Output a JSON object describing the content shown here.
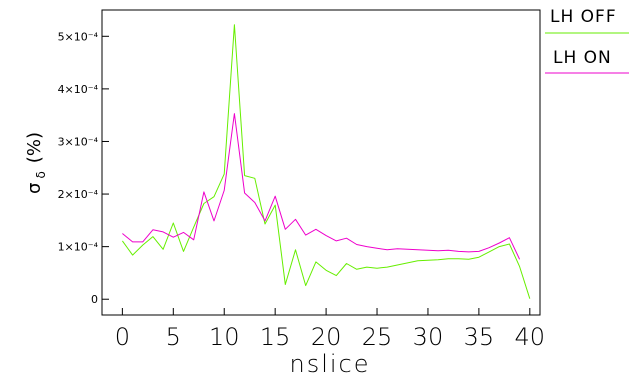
{
  "chart_data": {
    "type": "line",
    "title": "",
    "xlabel": "nslice",
    "ylabel": "σ_δ (%)",
    "ylabel_main": "σ",
    "ylabel_sub": "δ",
    "ylabel_unit": "(%)",
    "xlim": [
      -2,
      41
    ],
    "ylim": [
      -3e-05,
      0.00055
    ],
    "x_ticks": [
      0,
      5,
      10,
      15,
      20,
      25,
      30,
      35,
      40
    ],
    "x_tick_labels": [
      "0",
      "5",
      "10",
      "15",
      "20",
      "25",
      "30",
      "35",
      "40"
    ],
    "y_ticks": [
      0,
      0.0001,
      0.0002,
      0.0003,
      0.0004,
      0.0005
    ],
    "y_tick_labels": [
      "0",
      "1×10⁻⁴",
      "2×10⁻⁴",
      "3×10⁻⁴",
      "4×10⁻⁴",
      "5×10⁻⁴"
    ],
    "grid": false,
    "legend_position": "right",
    "series": [
      {
        "name": "LH  OFF",
        "color": "#66ee00",
        "x": [
          0,
          1,
          2,
          3,
          4,
          5,
          6,
          7,
          8,
          9,
          10,
          11,
          12,
          13,
          14,
          15,
          16,
          17,
          18,
          19,
          20,
          21,
          22,
          23,
          24,
          25,
          26,
          27,
          28,
          29,
          30,
          31,
          32,
          33,
          34,
          35,
          36,
          37,
          38,
          39,
          40
        ],
        "y": [
          0.000111,
          8.4e-05,
          0.000103,
          0.000119,
          9.5e-05,
          0.000145,
          9.1e-05,
          0.000137,
          0.000182,
          0.000195,
          0.000238,
          0.000522,
          0.000235,
          0.00023,
          0.000143,
          0.000179,
          2.8e-05,
          9.4e-05,
          2.6e-05,
          7.1e-05,
          5.5e-05,
          4.5e-05,
          6.8e-05,
          5.7e-05,
          6.1e-05,
          5.9e-05,
          6.1e-05,
          6.5e-05,
          6.9e-05,
          7.3e-05,
          7.4e-05,
          7.5e-05,
          7.7e-05,
          7.7e-05,
          7.6e-05,
          8e-05,
          9e-05,
          0.0001,
          0.000105,
          6.2e-05,
          1e-06
        ]
      },
      {
        "name": "LH  ON",
        "color": "#ee00cc",
        "x": [
          0,
          1,
          2,
          3,
          4,
          5,
          6,
          7,
          8,
          9,
          10,
          11,
          12,
          13,
          14,
          15,
          16,
          17,
          18,
          19,
          20,
          21,
          22,
          23,
          24,
          25,
          26,
          27,
          28,
          29,
          30,
          31,
          32,
          33,
          34,
          35,
          36,
          37,
          38,
          39
        ],
        "y": [
          0.000125,
          0.000109,
          0.000109,
          0.000132,
          0.000128,
          0.000118,
          0.000127,
          0.000113,
          0.000204,
          0.000149,
          0.000207,
          0.000353,
          0.000202,
          0.000184,
          0.000149,
          0.000196,
          0.000133,
          0.000152,
          0.000122,
          0.000133,
          0.000121,
          0.000111,
          0.000116,
          0.000104,
          0.0001,
          9.7e-05,
          9.4e-05,
          9.6e-05,
          9.5e-05,
          9.4e-05,
          9.3e-05,
          9.2e-05,
          9.3e-05,
          9.1e-05,
          9e-05,
          9.1e-05,
          9.8e-05,
          0.000107,
          0.000117,
          7.6e-05
        ]
      }
    ]
  }
}
